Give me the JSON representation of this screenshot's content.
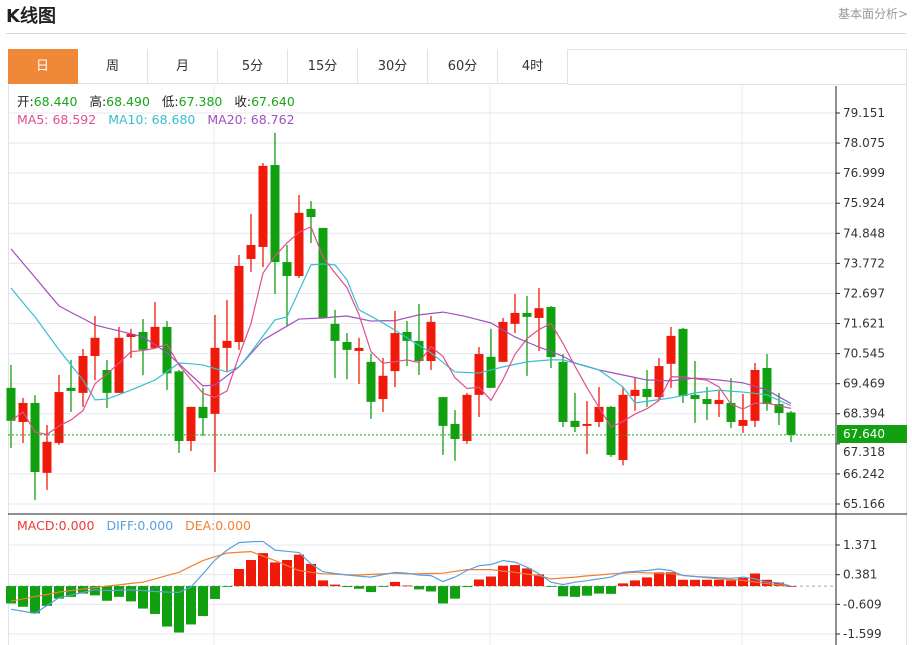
{
  "header": {
    "title": "K线图",
    "more_link": "基本面分析>"
  },
  "tabs": [
    {
      "label": "日",
      "active": true
    },
    {
      "label": "周"
    },
    {
      "label": "月"
    },
    {
      "label": "5分"
    },
    {
      "label": "15分"
    },
    {
      "label": "30分"
    },
    {
      "label": "60分"
    },
    {
      "label": "4时"
    }
  ],
  "legend": {
    "open_label": "开:",
    "open": "68.440",
    "high_label": "高:",
    "high": "68.490",
    "low_label": "低:",
    "low": "67.380",
    "close_label": "收:",
    "close": "67.640",
    "ma5": "MA5: 68.592",
    "ma10": "MA10: 68.680",
    "ma20": "MA20: 68.762"
  },
  "macd_legend": {
    "macd": "MACD:0.000",
    "diff": "DIFF:0.000",
    "dea": "DEA:0.000"
  },
  "current_price": "67.640",
  "colors": {
    "up": "#f01a0a",
    "down": "#10a010",
    "ma5": "#e0508a",
    "ma10": "#38bfd0",
    "ma20": "#a050c0",
    "diff": "#5aa0e0",
    "dea": "#f08030",
    "accent": "#f0883a"
  },
  "chart_data": [
    {
      "type": "candlestick",
      "y_ticks": [
        "79.151",
        "78.075",
        "76.999",
        "75.924",
        "74.848",
        "73.772",
        "72.697",
        "71.621",
        "70.545",
        "69.469",
        "68.394",
        "67.318",
        "66.242",
        "65.166"
      ],
      "ylim": [
        65.166,
        79.151
      ],
      "grid": true,
      "ohlc": [
        [
          69.32,
          70.14,
          67.17,
          68.14
        ],
        [
          68.1,
          68.96,
          67.35,
          68.78
        ],
        [
          68.78,
          69.06,
          65.31,
          66.31
        ],
        [
          66.28,
          67.99,
          65.67,
          67.39
        ],
        [
          67.35,
          69.78,
          67.28,
          69.17
        ],
        [
          69.32,
          70.32,
          68.46,
          69.21
        ],
        [
          69.14,
          70.71,
          68.64,
          70.46
        ],
        [
          70.46,
          71.89,
          69.6,
          71.11
        ],
        [
          69.96,
          70.32,
          68.6,
          69.14
        ],
        [
          69.14,
          71.5,
          69.14,
          71.11
        ],
        [
          71.14,
          71.43,
          70.39,
          71.25
        ],
        [
          71.32,
          71.78,
          69.77,
          70.68
        ],
        [
          70.75,
          72.39,
          70.75,
          71.5
        ],
        [
          71.5,
          71.71,
          69.24,
          69.84
        ],
        [
          69.91,
          69.96,
          66.99,
          67.42
        ],
        [
          67.42,
          68.64,
          67.06,
          68.64
        ],
        [
          68.64,
          69.32,
          67.6,
          68.24
        ],
        [
          68.39,
          71.93,
          66.31,
          70.75
        ],
        [
          70.75,
          72.46,
          69.91,
          71.0
        ],
        [
          70.96,
          74.07,
          70.68,
          73.68
        ],
        [
          73.93,
          75.54,
          73.47,
          74.43
        ],
        [
          74.36,
          77.36,
          73.64,
          77.26
        ],
        [
          77.29,
          78.44,
          72.68,
          73.82
        ],
        [
          73.82,
          74.43,
          71.53,
          73.32
        ],
        [
          73.32,
          76.22,
          73.25,
          75.58
        ],
        [
          75.72,
          76.0,
          74.5,
          75.43
        ],
        [
          75.04,
          75.04,
          71.82,
          71.82
        ],
        [
          71.61,
          72.11,
          69.67,
          71.0
        ],
        [
          70.96,
          71.28,
          69.63,
          70.68
        ],
        [
          70.64,
          71.11,
          69.46,
          70.75
        ],
        [
          70.25,
          70.54,
          68.21,
          68.82
        ],
        [
          68.92,
          70.39,
          68.46,
          69.75
        ],
        [
          69.92,
          72.07,
          69.35,
          71.28
        ],
        [
          71.32,
          71.71,
          70.1,
          71.0
        ],
        [
          71.0,
          72.32,
          69.78,
          70.28
        ],
        [
          70.28,
          71.89,
          69.96,
          71.68
        ],
        [
          68.99,
          68.99,
          66.92,
          67.96
        ],
        [
          68.03,
          68.53,
          66.71,
          67.49
        ],
        [
          67.42,
          69.14,
          67.32,
          69.07
        ],
        [
          69.07,
          70.78,
          68.28,
          70.53
        ],
        [
          70.43,
          71.43,
          69.32,
          69.32
        ],
        [
          70.25,
          71.82,
          70.25,
          71.68
        ],
        [
          71.61,
          72.68,
          71.28,
          72.0
        ],
        [
          72.0,
          72.61,
          69.75,
          71.86
        ],
        [
          71.82,
          72.89,
          70.64,
          72.17
        ],
        [
          72.21,
          72.25,
          70.03,
          70.42
        ],
        [
          70.25,
          70.53,
          67.92,
          68.1
        ],
        [
          68.14,
          69.14,
          67.74,
          67.92
        ],
        [
          67.96,
          68.85,
          66.95,
          68.03
        ],
        [
          68.1,
          69.35,
          67.92,
          68.64
        ],
        [
          68.64,
          68.67,
          66.85,
          66.92
        ],
        [
          66.74,
          69.35,
          66.55,
          69.07
        ],
        [
          69.03,
          69.71,
          68.5,
          69.25
        ],
        [
          69.28,
          69.96,
          68.64,
          68.99
        ],
        [
          68.99,
          70.39,
          68.92,
          70.1
        ],
        [
          70.18,
          71.5,
          69.32,
          71.18
        ],
        [
          71.43,
          71.46,
          68.78,
          69.03
        ],
        [
          69.07,
          70.28,
          68.07,
          68.92
        ],
        [
          68.92,
          69.35,
          68.17,
          68.74
        ],
        [
          68.74,
          69.24,
          68.28,
          68.89
        ],
        [
          68.78,
          69.67,
          67.88,
          68.1
        ],
        [
          67.96,
          69.1,
          67.71,
          68.17
        ],
        [
          68.14,
          70.21,
          67.92,
          69.96
        ],
        [
          70.03,
          70.53,
          68.5,
          68.74
        ],
        [
          68.74,
          69.14,
          67.99,
          68.42
        ],
        [
          68.44,
          68.49,
          67.38,
          67.64
        ]
      ],
      "ma10": [
        72.89,
        72.37,
        71.86,
        71.27,
        70.68,
        70.14,
        69.6,
        68.89,
        68.92,
        69.08,
        69.24,
        69.42,
        69.6,
        69.9,
        70.21,
        70.18,
        70.14,
        70.01,
        69.89,
        70.07,
        70.6,
        71.18,
        71.75,
        71.86,
        72.79,
        73.72,
        73.75,
        73.72,
        73.18,
        72.11,
        71.88,
        71.64,
        71.38,
        71.11,
        70.84,
        70.57,
        70.23,
        69.89,
        69.87,
        69.85,
        69.96,
        70.07,
        70.16,
        70.25,
        70.29,
        70.32,
        70.32,
        70.2,
        70.08,
        69.96,
        69.66,
        69.35,
        68.78,
        68.84,
        68.9,
        68.96,
        69.05,
        69.14,
        69.19,
        69.24,
        69.2,
        69.17,
        69.12,
        69.07,
        68.87,
        68.68
      ],
      "ma20": [
        74.29,
        73.78,
        73.27,
        72.76,
        72.25,
        72.02,
        71.8,
        71.57,
        71.46,
        71.36,
        71.25,
        71.14,
        70.86,
        70.57,
        70.18,
        69.78,
        69.39,
        69.42,
        69.75,
        70.07,
        70.55,
        71.03,
        71.28,
        71.53,
        71.78,
        71.8,
        71.82,
        71.86,
        71.89,
        71.8,
        71.71,
        71.72,
        71.72,
        71.83,
        71.93,
        71.98,
        72.03,
        71.95,
        71.86,
        71.75,
        71.64,
        71.39,
        71.14,
        70.96,
        70.78,
        70.62,
        70.45,
        70.21,
        70.09,
        69.96,
        69.87,
        69.78,
        69.69,
        69.6,
        69.59,
        69.57,
        69.62,
        69.67,
        69.64,
        69.6,
        69.55,
        69.5,
        69.37,
        69.24,
        69.0,
        68.76
      ]
    },
    {
      "type": "bar",
      "y_ticks": [
        "1.371",
        "0.381",
        "-0.609",
        "-1.599"
      ],
      "ylim": [
        -1.599,
        1.371
      ],
      "grid": true,
      "macd": [
        -0.58,
        -0.69,
        -0.91,
        -0.66,
        -0.42,
        -0.36,
        -0.25,
        -0.31,
        -0.49,
        -0.36,
        -0.51,
        -0.75,
        -0.93,
        -1.35,
        -1.55,
        -1.28,
        -1.0,
        -0.43,
        -0.02,
        0.57,
        0.87,
        1.1,
        0.79,
        0.87,
        1.05,
        0.74,
        0.19,
        0.05,
        -0.03,
        -0.09,
        -0.2,
        -0.01,
        0.14,
        0.02,
        -0.11,
        -0.18,
        -0.58,
        -0.42,
        -0.03,
        0.22,
        0.32,
        0.68,
        0.7,
        0.59,
        0.39,
        -0.01,
        -0.34,
        -0.36,
        -0.32,
        -0.25,
        -0.26,
        0.09,
        0.19,
        0.29,
        0.46,
        0.46,
        0.21,
        0.21,
        0.21,
        0.21,
        0.19,
        0.27,
        0.42,
        0.21,
        0.12,
        0.0
      ],
      "diff": [
        -0.77,
        -0.84,
        -0.91,
        -0.65,
        -0.39,
        -0.3,
        -0.21,
        -0.12,
        -0.15,
        -0.14,
        -0.13,
        -0.15,
        -0.18,
        -0.2,
        -0.21,
        -0.03,
        0.41,
        0.87,
        1.2,
        1.45,
        1.48,
        1.49,
        1.2,
        1.16,
        1.12,
        0.74,
        0.48,
        0.42,
        0.37,
        0.33,
        0.3,
        0.38,
        0.46,
        0.43,
        0.37,
        0.35,
        0.15,
        0.3,
        0.52,
        0.68,
        0.72,
        0.85,
        0.8,
        0.63,
        0.41,
        0.13,
        0.05,
        0.13,
        0.18,
        0.24,
        0.3,
        0.46,
        0.49,
        0.52,
        0.57,
        0.52,
        0.35,
        0.32,
        0.3,
        0.28,
        0.26,
        0.3,
        0.24,
        0.13,
        0.11,
        0.0
      ],
      "dea": [
        -0.5,
        -0.43,
        -0.35,
        -0.28,
        -0.2,
        -0.15,
        -0.1,
        -0.05,
        0.0,
        0.04,
        0.09,
        0.13,
        0.24,
        0.35,
        0.46,
        0.66,
        0.85,
        0.98,
        1.1,
        1.13,
        1.15,
        1.0,
        0.85,
        0.68,
        0.52,
        0.46,
        0.41,
        0.4,
        0.38,
        0.37,
        0.39,
        0.41,
        0.43,
        0.41,
        0.41,
        0.42,
        0.43,
        0.49,
        0.55,
        0.55,
        0.55,
        0.5,
        0.46,
        0.4,
        0.35,
        0.24,
        0.27,
        0.3,
        0.34,
        0.37,
        0.41,
        0.43,
        0.46,
        0.44,
        0.43,
        0.41,
        0.36,
        0.32,
        0.28,
        0.24,
        0.22,
        0.19,
        0.14,
        0.08,
        0.04,
        0.0
      ]
    }
  ]
}
